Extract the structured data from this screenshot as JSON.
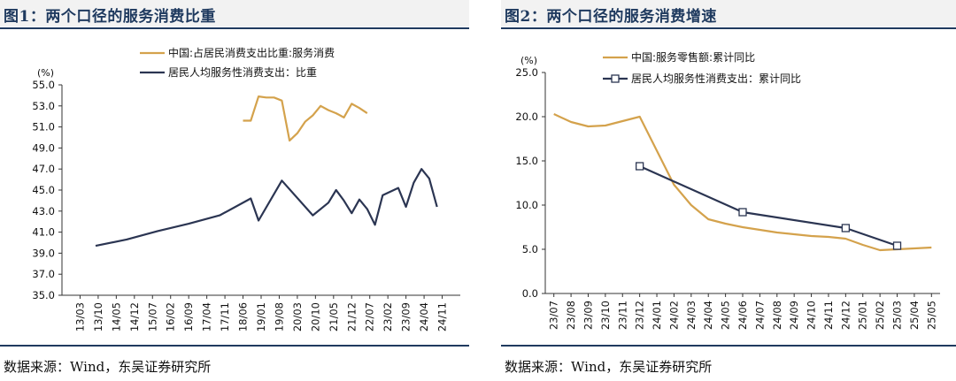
{
  "chart1": {
    "title": "图1：两个口径的服务消费比重",
    "source": "数据来源：Wind，东吴证券研究所",
    "chart_data": {
      "type": "line",
      "unit": "(%)",
      "ylim": [
        35,
        55
      ],
      "yticks": [
        "35.0",
        "37.0",
        "39.0",
        "41.0",
        "43.0",
        "45.0",
        "47.0",
        "49.0",
        "51.0",
        "53.0",
        "55.0"
      ],
      "xticks": [
        "13/03",
        "13/10",
        "14/05",
        "14/12",
        "15/07",
        "16/02",
        "16/09",
        "17/04",
        "17/11",
        "18/06",
        "19/01",
        "19/08",
        "20/03",
        "20/10",
        "21/05",
        "21/12",
        "22/07",
        "23/02",
        "23/09",
        "24/04",
        "24/11"
      ],
      "grid": false,
      "legend_position": "top-center",
      "series": [
        {
          "name": "中国:占居民消费支出比重:服务消费",
          "color": "#d4a24c",
          "points": [
            [
              "18/06",
              51.6
            ],
            [
              "18/09",
              51.6
            ],
            [
              "18/12",
              53.9
            ],
            [
              "19/03",
              53.8
            ],
            [
              "19/06",
              53.8
            ],
            [
              "19/09",
              53.5
            ],
            [
              "19/12",
              49.7
            ],
            [
              "20/03",
              50.4
            ],
            [
              "20/06",
              51.5
            ],
            [
              "20/09",
              52.1
            ],
            [
              "20/12",
              53.0
            ],
            [
              "21/03",
              52.6
            ],
            [
              "21/06",
              52.3
            ],
            [
              "21/09",
              51.9
            ],
            [
              "21/12",
              53.2
            ],
            [
              "22/03",
              52.8
            ],
            [
              "22/06",
              52.3
            ]
          ]
        },
        {
          "name": "居民人均服务性消费支出：比重",
          "color": "#2b3552",
          "points": [
            [
              "13/09",
              39.7
            ],
            [
              "14/09",
              40.3
            ],
            [
              "15/09",
              41.1
            ],
            [
              "16/09",
              41.8
            ],
            [
              "17/09",
              42.6
            ],
            [
              "18/09",
              44.2
            ],
            [
              "18/12",
              42.1
            ],
            [
              "19/09",
              45.9
            ],
            [
              "20/09",
              42.6
            ],
            [
              "21/03",
              43.8
            ],
            [
              "21/06",
              45.0
            ],
            [
              "21/09",
              44.0
            ],
            [
              "21/12",
              42.8
            ],
            [
              "22/03",
              44.1
            ],
            [
              "22/06",
              43.2
            ],
            [
              "22/09",
              41.7
            ],
            [
              "22/12",
              44.5
            ],
            [
              "23/06",
              45.2
            ],
            [
              "23/09",
              43.4
            ],
            [
              "23/12",
              45.7
            ],
            [
              "24/03",
              47.0
            ],
            [
              "24/06",
              46.1
            ],
            [
              "24/09",
              43.4
            ]
          ]
        }
      ]
    }
  },
  "chart2": {
    "title": "图2：两个口径的服务消费增速",
    "source": "数据来源：Wind，东吴证券研究所",
    "chart_data": {
      "type": "line",
      "unit": "(%)",
      "ylim": [
        0,
        25
      ],
      "yticks": [
        "0.0",
        "5.0",
        "10.0",
        "15.0",
        "20.0",
        "25.0"
      ],
      "xticks": [
        "23/07",
        "23/08",
        "23/09",
        "23/10",
        "23/11",
        "23/12",
        "24/01",
        "24/02",
        "24/03",
        "24/04",
        "24/05",
        "24/06",
        "24/07",
        "24/08",
        "24/09",
        "24/10",
        "24/11",
        "24/12",
        "25/01",
        "25/02",
        "25/03",
        "25/04",
        "25/05"
      ],
      "grid": false,
      "legend_position": "top-center",
      "series": [
        {
          "name": "中国:服务零售额:累计同比",
          "color": "#d4a24c",
          "points": [
            [
              "23/07",
              20.3
            ],
            [
              "23/08",
              19.4
            ],
            [
              "23/09",
              18.9
            ],
            [
              "23/10",
              19.0
            ],
            [
              "23/11",
              19.5
            ],
            [
              "23/12",
              20.0
            ],
            [
              "24/02",
              12.3
            ],
            [
              "24/03",
              10.0
            ],
            [
              "24/04",
              8.4
            ],
            [
              "24/05",
              7.9
            ],
            [
              "24/06",
              7.5
            ],
            [
              "24/07",
              7.2
            ],
            [
              "24/08",
              6.9
            ],
            [
              "24/09",
              6.7
            ],
            [
              "24/10",
              6.5
            ],
            [
              "24/11",
              6.4
            ],
            [
              "24/12",
              6.2
            ],
            [
              "25/01",
              5.5
            ],
            [
              "25/02",
              4.9
            ],
            [
              "25/03",
              5.0
            ],
            [
              "25/04",
              5.1
            ],
            [
              "25/05",
              5.2
            ]
          ]
        },
        {
          "name": "居民人均服务性消费支出：累计同比",
          "color": "#2b3552",
          "points": [
            [
              "23/12",
              14.4
            ],
            [
              "24/06",
              9.2
            ],
            [
              "24/12",
              7.4
            ],
            [
              "25/03",
              5.4
            ]
          ]
        }
      ]
    }
  }
}
